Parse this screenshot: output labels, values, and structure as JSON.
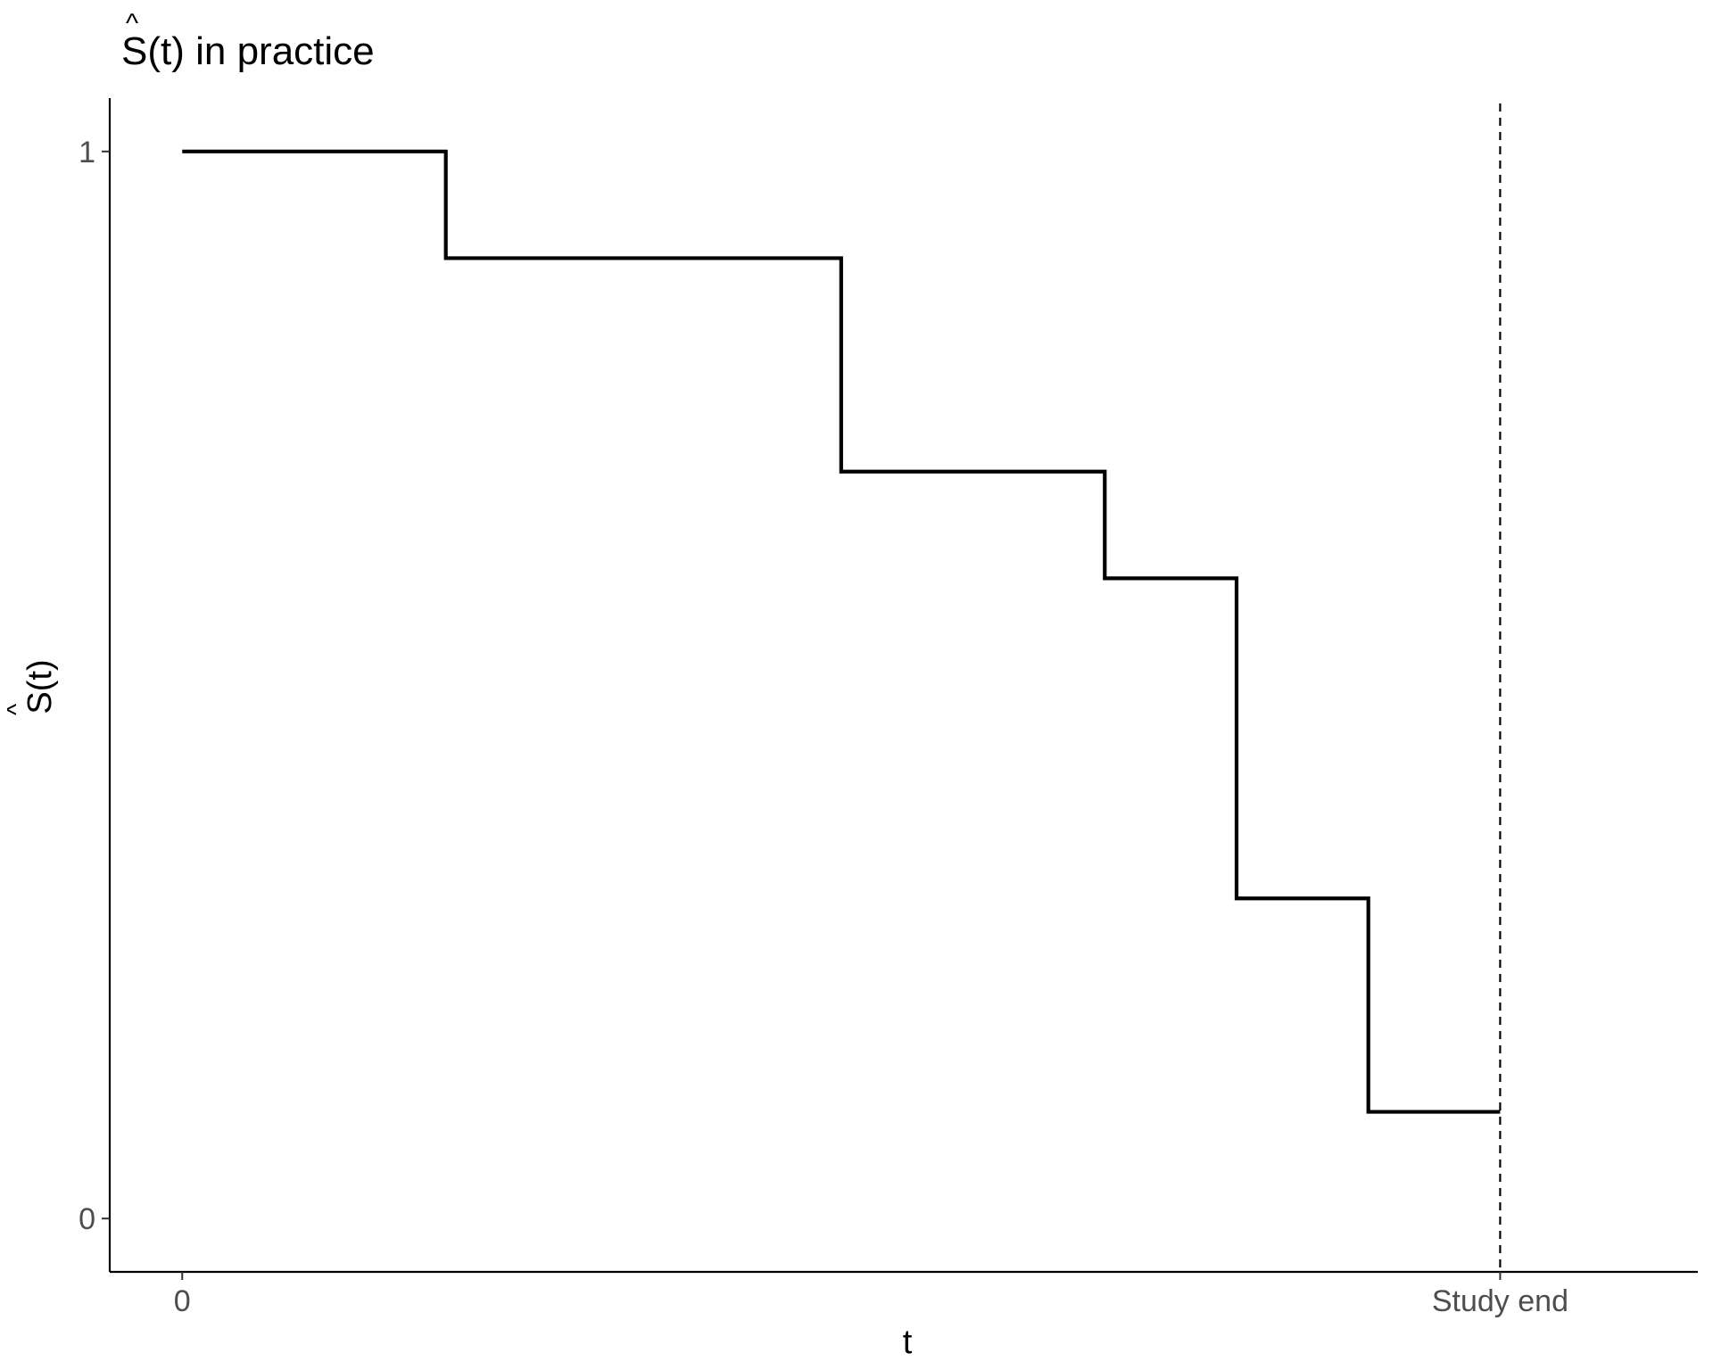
{
  "chart_data": {
    "type": "line",
    "step": true,
    "title": "Ŝ(t) in practice",
    "title_symbol": "S",
    "title_hat": "^",
    "title_arg": "(t)",
    "title_rest": " in practice",
    "xlabel": "t",
    "ylabel": "Ŝ(t)",
    "ylabel_symbol": "S",
    "ylabel_hat": "^",
    "ylabel_arg": "(t)",
    "x_ticks": [
      {
        "value": 0,
        "label": "0"
      },
      {
        "value": 10,
        "label": "Study end"
      }
    ],
    "y_ticks": [
      {
        "value": 0,
        "label": "0"
      },
      {
        "value": 1,
        "label": "1"
      }
    ],
    "xlim": [
      -0.55,
      11.5
    ],
    "ylim": [
      -0.05,
      1.05
    ],
    "series": [
      {
        "x": [
          0,
          2,
          5,
          7,
          8,
          9,
          10
        ],
        "y": [
          1.0,
          0.9,
          0.7,
          0.6,
          0.3,
          0.1,
          0.1
        ],
        "color": "#000000"
      }
    ],
    "vline": {
      "x": 10,
      "style": "dashed",
      "color": "#000000"
    },
    "grid": false,
    "legend": "none"
  }
}
